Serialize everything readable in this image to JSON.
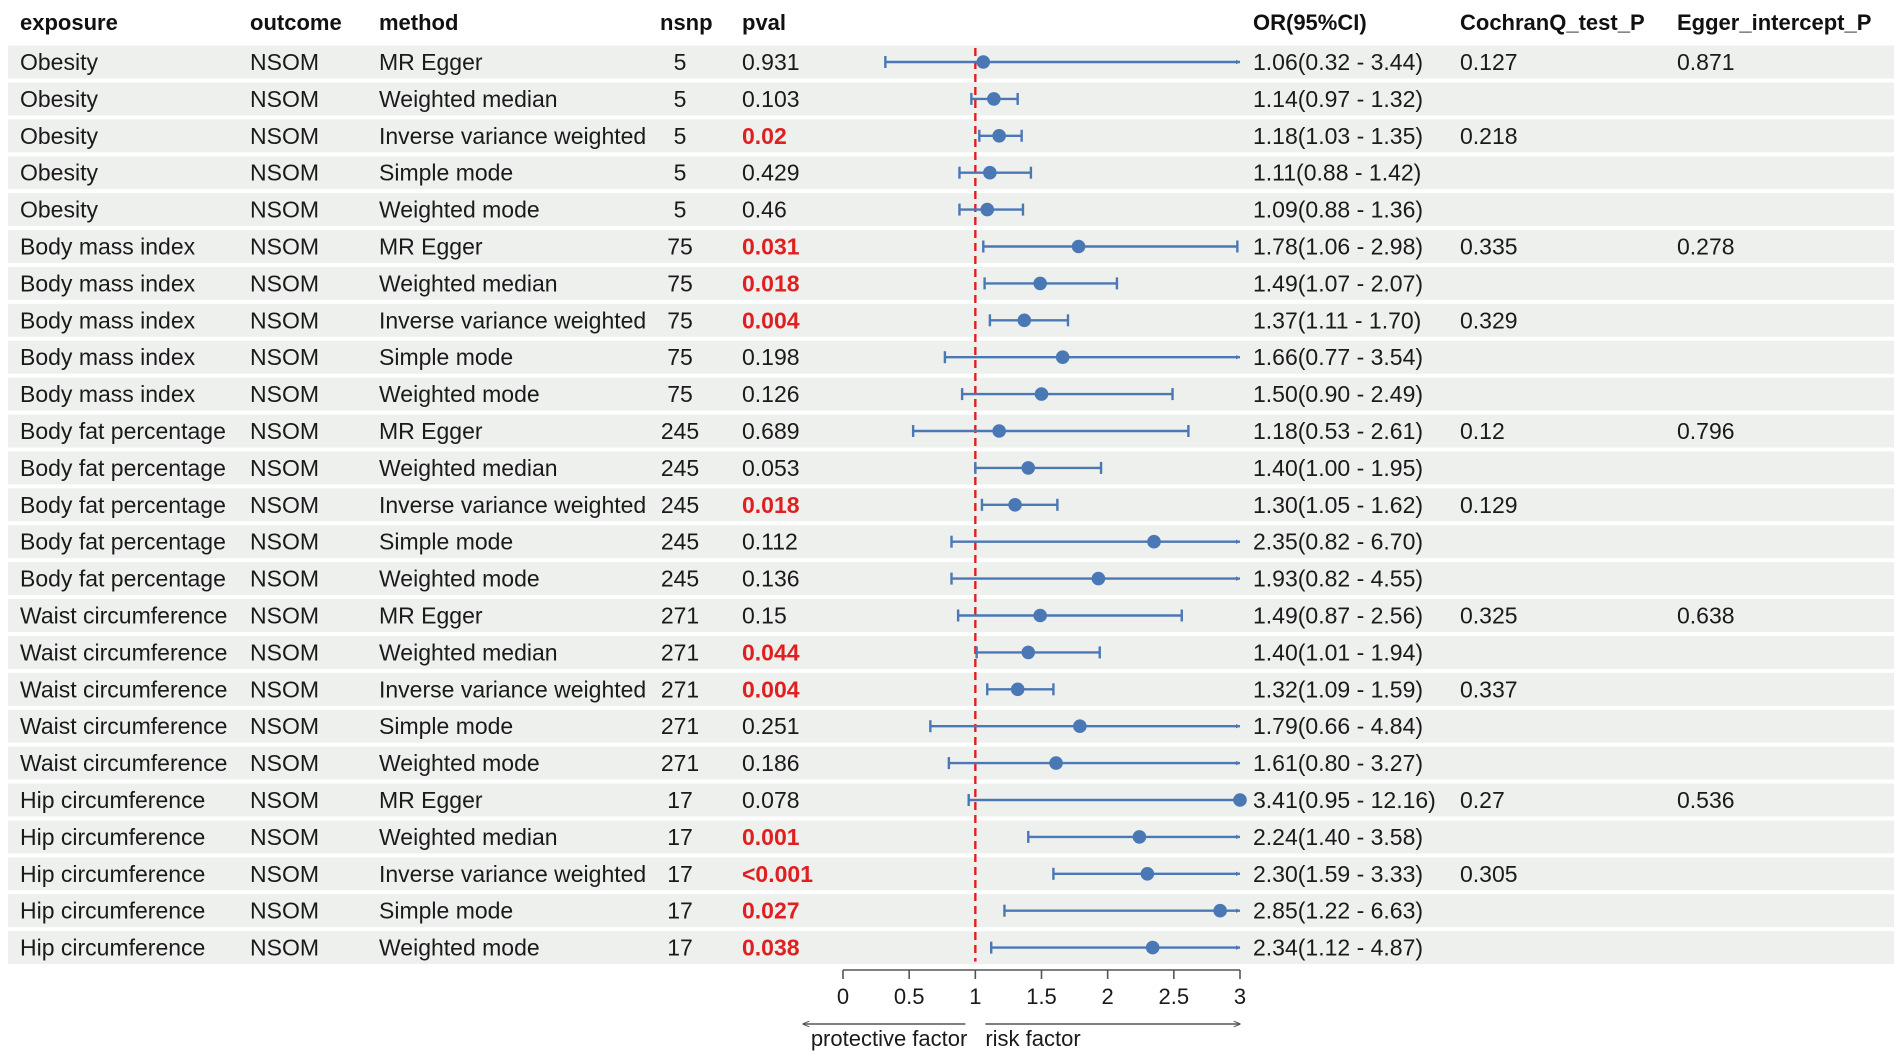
{
  "chart_data": {
    "type": "forest",
    "columns": {
      "exposure": "exposure",
      "outcome": "outcome",
      "method": "method",
      "nsnp": "nsnp",
      "pval": "pval",
      "or": "OR(95%CI)",
      "cochran": "CochranQ_test_P",
      "egger": "Egger_intercept_P"
    },
    "rows": [
      {
        "exposure": "Obesity",
        "outcome": "NSOM",
        "method": "MR Egger",
        "nsnp": "5",
        "pval": "0.931",
        "sig": false,
        "or": 1.06,
        "lo": 0.32,
        "hi": 3.44,
        "or_text": "1.06(0.32 - 3.44)",
        "cochran": "0.127",
        "egger": "0.871"
      },
      {
        "exposure": "Obesity",
        "outcome": "NSOM",
        "method": "Weighted median",
        "nsnp": "5",
        "pval": "0.103",
        "sig": false,
        "or": 1.14,
        "lo": 0.97,
        "hi": 1.32,
        "or_text": "1.14(0.97 - 1.32)",
        "cochran": "",
        "egger": ""
      },
      {
        "exposure": "Obesity",
        "outcome": "NSOM",
        "method": "Inverse variance weighted",
        "nsnp": "5",
        "pval": "0.02",
        "sig": true,
        "or": 1.18,
        "lo": 1.03,
        "hi": 1.35,
        "or_text": "1.18(1.03 - 1.35)",
        "cochran": "0.218",
        "egger": ""
      },
      {
        "exposure": "Obesity",
        "outcome": "NSOM",
        "method": "Simple mode",
        "nsnp": "5",
        "pval": "0.429",
        "sig": false,
        "or": 1.11,
        "lo": 0.88,
        "hi": 1.42,
        "or_text": "1.11(0.88 - 1.42)",
        "cochran": "",
        "egger": ""
      },
      {
        "exposure": "Obesity",
        "outcome": "NSOM",
        "method": "Weighted mode",
        "nsnp": "5",
        "pval": "0.46",
        "sig": false,
        "or": 1.09,
        "lo": 0.88,
        "hi": 1.36,
        "or_text": "1.09(0.88 - 1.36)",
        "cochran": "",
        "egger": ""
      },
      {
        "exposure": "Body mass index",
        "outcome": "NSOM",
        "method": "MR Egger",
        "nsnp": "75",
        "pval": "0.031",
        "sig": true,
        "or": 1.78,
        "lo": 1.06,
        "hi": 2.98,
        "or_text": "1.78(1.06 - 2.98)",
        "cochran": "0.335",
        "egger": "0.278"
      },
      {
        "exposure": "Body mass index",
        "outcome": "NSOM",
        "method": "Weighted median",
        "nsnp": "75",
        "pval": "0.018",
        "sig": true,
        "or": 1.49,
        "lo": 1.07,
        "hi": 2.07,
        "or_text": "1.49(1.07 - 2.07)",
        "cochran": "",
        "egger": ""
      },
      {
        "exposure": "Body mass index",
        "outcome": "NSOM",
        "method": "Inverse variance weighted",
        "nsnp": "75",
        "pval": "0.004",
        "sig": true,
        "or": 1.37,
        "lo": 1.11,
        "hi": 1.7,
        "or_text": "1.37(1.11 - 1.70)",
        "cochran": "0.329",
        "egger": ""
      },
      {
        "exposure": "Body mass index",
        "outcome": "NSOM",
        "method": "Simple mode",
        "nsnp": "75",
        "pval": "0.198",
        "sig": false,
        "or": 1.66,
        "lo": 0.77,
        "hi": 3.54,
        "or_text": "1.66(0.77 - 3.54)",
        "cochran": "",
        "egger": ""
      },
      {
        "exposure": "Body mass index",
        "outcome": "NSOM",
        "method": "Weighted mode",
        "nsnp": "75",
        "pval": "0.126",
        "sig": false,
        "or": 1.5,
        "lo": 0.9,
        "hi": 2.49,
        "or_text": "1.50(0.90 - 2.49)",
        "cochran": "",
        "egger": ""
      },
      {
        "exposure": "Body fat percentage",
        "outcome": "NSOM",
        "method": "MR Egger",
        "nsnp": "245",
        "pval": "0.689",
        "sig": false,
        "or": 1.18,
        "lo": 0.53,
        "hi": 2.61,
        "or_text": "1.18(0.53 - 2.61)",
        "cochran": "0.12",
        "egger": "0.796"
      },
      {
        "exposure": "Body fat percentage",
        "outcome": "NSOM",
        "method": "Weighted median",
        "nsnp": "245",
        "pval": "0.053",
        "sig": false,
        "or": 1.4,
        "lo": 1.0,
        "hi": 1.95,
        "or_text": "1.40(1.00 - 1.95)",
        "cochran": "",
        "egger": ""
      },
      {
        "exposure": "Body fat percentage",
        "outcome": "NSOM",
        "method": "Inverse variance weighted",
        "nsnp": "245",
        "pval": "0.018",
        "sig": true,
        "or": 1.3,
        "lo": 1.05,
        "hi": 1.62,
        "or_text": "1.30(1.05 - 1.62)",
        "cochran": "0.129",
        "egger": ""
      },
      {
        "exposure": "Body fat percentage",
        "outcome": "NSOM",
        "method": "Simple mode",
        "nsnp": "245",
        "pval": "0.112",
        "sig": false,
        "or": 2.35,
        "lo": 0.82,
        "hi": 6.7,
        "or_text": "2.35(0.82 - 6.70)",
        "cochran": "",
        "egger": ""
      },
      {
        "exposure": "Body fat percentage",
        "outcome": "NSOM",
        "method": "Weighted mode",
        "nsnp": "245",
        "pval": "0.136",
        "sig": false,
        "or": 1.93,
        "lo": 0.82,
        "hi": 4.55,
        "or_text": "1.93(0.82 - 4.55)",
        "cochran": "",
        "egger": ""
      },
      {
        "exposure": "Waist circumference",
        "outcome": "NSOM",
        "method": "MR Egger",
        "nsnp": "271",
        "pval": "0.15",
        "sig": false,
        "or": 1.49,
        "lo": 0.87,
        "hi": 2.56,
        "or_text": "1.49(0.87 - 2.56)",
        "cochran": "0.325",
        "egger": "0.638"
      },
      {
        "exposure": "Waist circumference",
        "outcome": "NSOM",
        "method": "Weighted median",
        "nsnp": "271",
        "pval": "0.044",
        "sig": true,
        "or": 1.4,
        "lo": 1.01,
        "hi": 1.94,
        "or_text": "1.40(1.01 - 1.94)",
        "cochran": "",
        "egger": ""
      },
      {
        "exposure": "Waist circumference",
        "outcome": "NSOM",
        "method": "Inverse variance weighted",
        "nsnp": "271",
        "pval": "0.004",
        "sig": true,
        "or": 1.32,
        "lo": 1.09,
        "hi": 1.59,
        "or_text": "1.32(1.09 - 1.59)",
        "cochran": "0.337",
        "egger": ""
      },
      {
        "exposure": "Waist circumference",
        "outcome": "NSOM",
        "method": "Simple mode",
        "nsnp": "271",
        "pval": "0.251",
        "sig": false,
        "or": 1.79,
        "lo": 0.66,
        "hi": 4.84,
        "or_text": "1.79(0.66 - 4.84)",
        "cochran": "",
        "egger": ""
      },
      {
        "exposure": "Waist circumference",
        "outcome": "NSOM",
        "method": "Weighted mode",
        "nsnp": "271",
        "pval": "0.186",
        "sig": false,
        "or": 1.61,
        "lo": 0.8,
        "hi": 3.27,
        "or_text": "1.61(0.80 - 3.27)",
        "cochran": "",
        "egger": ""
      },
      {
        "exposure": "Hip circumference",
        "outcome": "NSOM",
        "method": "MR Egger",
        "nsnp": "17",
        "pval": "0.078",
        "sig": false,
        "or": 3.41,
        "lo": 0.95,
        "hi": 12.16,
        "or_text": "3.41(0.95 - 12.16)",
        "cochran": "0.27",
        "egger": "0.536"
      },
      {
        "exposure": "Hip circumference",
        "outcome": "NSOM",
        "method": "Weighted median",
        "nsnp": "17",
        "pval": "0.001",
        "sig": true,
        "or": 2.24,
        "lo": 1.4,
        "hi": 3.58,
        "or_text": "2.24(1.40 - 3.58)",
        "cochran": "",
        "egger": ""
      },
      {
        "exposure": "Hip circumference",
        "outcome": "NSOM",
        "method": "Inverse variance weighted",
        "nsnp": "17",
        "pval": "<0.001",
        "sig": true,
        "or": 2.3,
        "lo": 1.59,
        "hi": 3.33,
        "or_text": "2.30(1.59 - 3.33)",
        "cochran": "0.305",
        "egger": ""
      },
      {
        "exposure": "Hip circumference",
        "outcome": "NSOM",
        "method": "Simple mode",
        "nsnp": "17",
        "pval": "0.027",
        "sig": true,
        "or": 2.85,
        "lo": 1.22,
        "hi": 6.63,
        "or_text": "2.85(1.22 - 6.63)",
        "cochran": "",
        "egger": ""
      },
      {
        "exposure": "Hip circumference",
        "outcome": "NSOM",
        "method": "Weighted mode",
        "nsnp": "17",
        "pval": "0.038",
        "sig": true,
        "or": 2.34,
        "lo": 1.12,
        "hi": 4.87,
        "or_text": "2.34(1.12 - 4.87)",
        "cochran": "",
        "egger": ""
      }
    ],
    "axis": {
      "xlim": [
        0,
        3
      ],
      "ticks": [
        0,
        0.5,
        1,
        1.5,
        2,
        2.5,
        3
      ],
      "tick_labels": [
        "0",
        "0.5",
        "1",
        "1.5",
        "2",
        "2.5",
        "3"
      ],
      "reference_line": 1,
      "left_label": "protective factor",
      "right_label": "risk factor"
    },
    "colors": {
      "estimate": "#4a78b5",
      "reference_line": "#e02020",
      "significant_text": "#e02020",
      "row_stripe": "#eef0ee",
      "text": "#1a1a1a"
    }
  }
}
